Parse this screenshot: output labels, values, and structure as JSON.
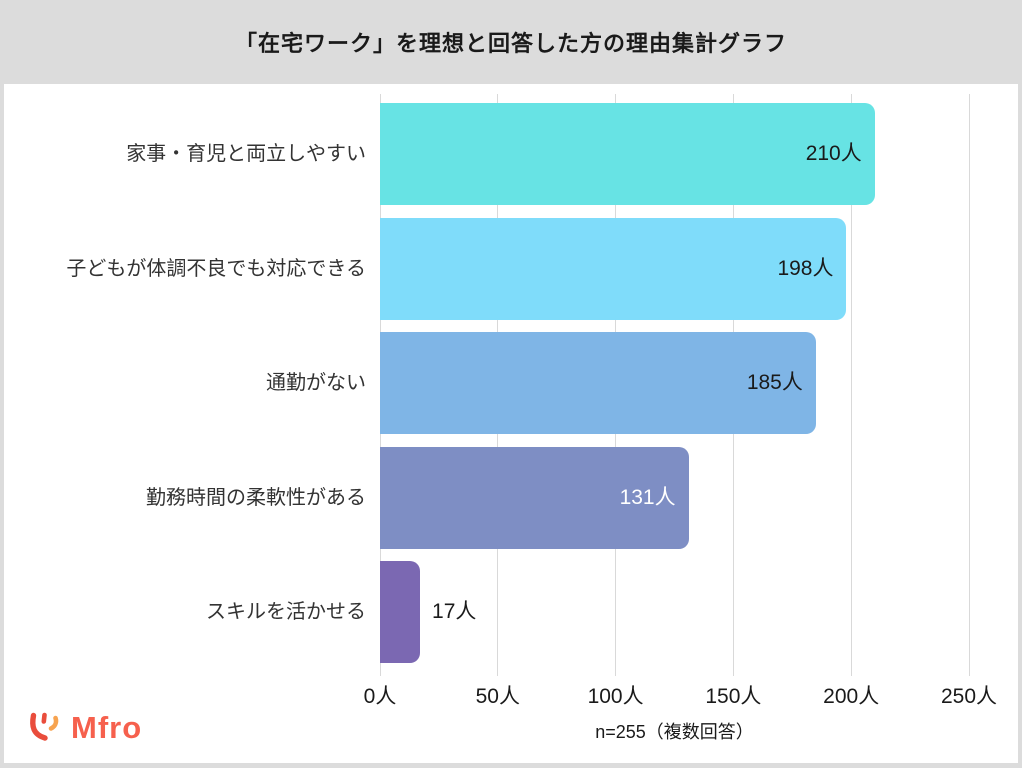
{
  "header": {
    "title": "「在宅ワーク」を理想と回答した方の理由集計グラフ"
  },
  "chart_data": {
    "type": "bar",
    "orientation": "horizontal",
    "title": "「在宅ワーク」を理想と回答した方の理由集計グラフ",
    "categories": [
      "家事・育児と両立しやすい",
      "子どもが体調不良でも対応できる",
      "通勤がない",
      "勤務時間の柔軟性がある",
      "スキルを活かせる"
    ],
    "values": [
      210,
      198,
      185,
      131,
      17
    ],
    "value_labels": [
      "210人",
      "198人",
      "185人",
      "131人",
      "17人"
    ],
    "bar_colors": [
      "#67e3e4",
      "#7fdcfa",
      "#7fb5e6",
      "#7e8ec4",
      "#7b68b2"
    ],
    "value_label_colors": [
      "#1a1a1a",
      "#1a1a1a",
      "#1a1a1a",
      "#ffffff",
      "#1a1a1a"
    ],
    "value_label_inside": [
      true,
      true,
      true,
      true,
      false
    ],
    "xlim": [
      0,
      250
    ],
    "x_ticks": [
      "0人",
      "50人",
      "100人",
      "150人",
      "200人",
      "250人"
    ],
    "x_tick_values": [
      0,
      50,
      100,
      150,
      200,
      250
    ],
    "grid": true,
    "gridline_color": "#d9d9d9",
    "note": "n=255（複数回答）"
  },
  "footer": {
    "logo_text": "Mfro",
    "logo_color": "#f6604d",
    "logo_icon_red": "#e94d3c",
    "logo_icon_orange": "#f7a34f"
  }
}
